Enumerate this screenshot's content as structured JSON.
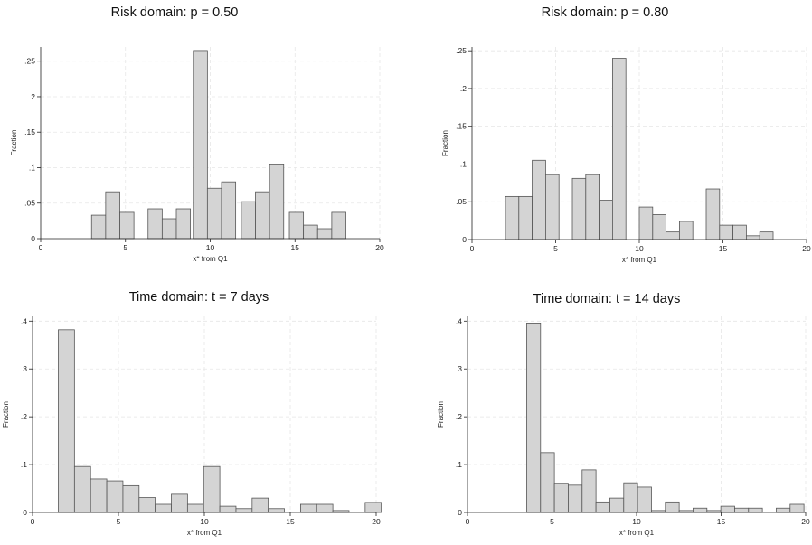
{
  "chart_data": [
    {
      "type": "bar",
      "title": "Risk domain: p = 0.50",
      "xlabel": "x* from Q1",
      "ylabel": "Fraction",
      "xlim": [
        0,
        20
      ],
      "ylim": [
        0,
        0.27
      ],
      "xticks": [
        0,
        5,
        10,
        15,
        20
      ],
      "xtick_labels": [
        "0",
        "5",
        "10",
        "15",
        "20"
      ],
      "yticks": [
        0,
        0.05,
        0.1,
        0.15,
        0.2,
        0.25
      ],
      "ytick_labels": [
        "0",
        ".05",
        ".1",
        ".15",
        ".2",
        ".25"
      ],
      "grid": true,
      "bin_width": 0.833,
      "bin_start": 3.0,
      "bars": [
        {
          "x": 3.0,
          "value": 0.033
        },
        {
          "x": 3.833,
          "value": 0.066
        },
        {
          "x": 4.667,
          "value": 0.037
        },
        {
          "x": 6.333,
          "value": 0.042
        },
        {
          "x": 7.167,
          "value": 0.028
        },
        {
          "x": 8.0,
          "value": 0.042
        },
        {
          "x": 9.0,
          "value": 0.265
        },
        {
          "x": 9.833,
          "value": 0.071
        },
        {
          "x": 10.667,
          "value": 0.08
        },
        {
          "x": 11.833,
          "value": 0.052
        },
        {
          "x": 12.667,
          "value": 0.066
        },
        {
          "x": 13.5,
          "value": 0.104
        },
        {
          "x": 14.667,
          "value": 0.037
        },
        {
          "x": 15.5,
          "value": 0.019
        },
        {
          "x": 16.333,
          "value": 0.014
        },
        {
          "x": 17.167,
          "value": 0.037
        }
      ]
    },
    {
      "type": "bar",
      "title": "Risk domain: p = 0.80",
      "xlabel": "x* from Q1",
      "ylabel": "Fraction",
      "xlim": [
        0,
        20
      ],
      "ylim": [
        0,
        0.255
      ],
      "xticks": [
        0,
        5,
        10,
        15,
        20
      ],
      "xtick_labels": [
        "0",
        "5",
        "10",
        "15",
        "20"
      ],
      "yticks": [
        0,
        0.05,
        0.1,
        0.15,
        0.2,
        0.25
      ],
      "ytick_labels": [
        "0",
        ".05",
        ".1",
        ".15",
        ".2",
        ".25"
      ],
      "grid": true,
      "bin_width": 0.8,
      "bin_start": 2.0,
      "bars": [
        {
          "x": 2.0,
          "value": 0.057
        },
        {
          "x": 2.8,
          "value": 0.057
        },
        {
          "x": 3.6,
          "value": 0.105
        },
        {
          "x": 4.4,
          "value": 0.086
        },
        {
          "x": 6.0,
          "value": 0.081
        },
        {
          "x": 6.8,
          "value": 0.086
        },
        {
          "x": 7.6,
          "value": 0.052
        },
        {
          "x": 8.4,
          "value": 0.24
        },
        {
          "x": 10.0,
          "value": 0.043
        },
        {
          "x": 10.8,
          "value": 0.033
        },
        {
          "x": 11.6,
          "value": 0.01
        },
        {
          "x": 12.4,
          "value": 0.024
        },
        {
          "x": 14.0,
          "value": 0.067
        },
        {
          "x": 14.8,
          "value": 0.019
        },
        {
          "x": 15.6,
          "value": 0.019
        },
        {
          "x": 16.4,
          "value": 0.005
        },
        {
          "x": 17.2,
          "value": 0.01
        }
      ]
    },
    {
      "type": "bar",
      "title": "Time domain: t = 7 days",
      "xlabel": "x* from Q1",
      "ylabel": "Fraction",
      "xlim": [
        0,
        20
      ],
      "ylim": [
        0,
        0.41
      ],
      "xticks": [
        0,
        5,
        10,
        15,
        20
      ],
      "xtick_labels": [
        "0",
        "5",
        "10",
        "15",
        "20"
      ],
      "yticks": [
        0,
        0.1,
        0.2,
        0.3,
        0.4
      ],
      "ytick_labels": [
        "0",
        ".1",
        ".2",
        ".3",
        ".4"
      ],
      "grid": true,
      "bin_width": 0.94,
      "bin_start": 1.5,
      "bars": [
        {
          "x": 1.5,
          "value": 0.382
        },
        {
          "x": 2.44,
          "value": 0.096
        },
        {
          "x": 3.38,
          "value": 0.07
        },
        {
          "x": 4.32,
          "value": 0.066
        },
        {
          "x": 5.26,
          "value": 0.056
        },
        {
          "x": 6.2,
          "value": 0.031
        },
        {
          "x": 7.14,
          "value": 0.017
        },
        {
          "x": 8.08,
          "value": 0.038
        },
        {
          "x": 9.02,
          "value": 0.017
        },
        {
          "x": 9.96,
          "value": 0.096
        },
        {
          "x": 10.9,
          "value": 0.013
        },
        {
          "x": 11.84,
          "value": 0.008
        },
        {
          "x": 12.78,
          "value": 0.03
        },
        {
          "x": 13.72,
          "value": 0.008
        },
        {
          "x": 15.6,
          "value": 0.017
        },
        {
          "x": 16.54,
          "value": 0.017
        },
        {
          "x": 17.48,
          "value": 0.004
        },
        {
          "x": 19.36,
          "value": 0.021
        }
      ]
    },
    {
      "type": "bar",
      "title": "Time domain: t = 14 days",
      "xlabel": "x* from Q1",
      "ylabel": "Fraction",
      "xlim": [
        0,
        20
      ],
      "ylim": [
        0,
        0.41
      ],
      "xticks": [
        0,
        5,
        10,
        15,
        20
      ],
      "xtick_labels": [
        "0",
        "5",
        "10",
        "15",
        "20"
      ],
      "yticks": [
        0,
        0.1,
        0.2,
        0.3,
        0.4
      ],
      "ytick_labels": [
        "0",
        ".1",
        ".2",
        ".3",
        ".4"
      ],
      "grid": true,
      "bin_width": 0.82,
      "bin_start": 3.5,
      "bars": [
        {
          "x": 3.5,
          "value": 0.396
        },
        {
          "x": 4.32,
          "value": 0.125
        },
        {
          "x": 5.14,
          "value": 0.061
        },
        {
          "x": 5.96,
          "value": 0.057
        },
        {
          "x": 6.78,
          "value": 0.089
        },
        {
          "x": 7.6,
          "value": 0.022
        },
        {
          "x": 8.42,
          "value": 0.03
        },
        {
          "x": 9.24,
          "value": 0.062
        },
        {
          "x": 10.06,
          "value": 0.053
        },
        {
          "x": 10.88,
          "value": 0.004
        },
        {
          "x": 11.7,
          "value": 0.022
        },
        {
          "x": 12.52,
          "value": 0.004
        },
        {
          "x": 13.34,
          "value": 0.009
        },
        {
          "x": 14.16,
          "value": 0.004
        },
        {
          "x": 14.98,
          "value": 0.013
        },
        {
          "x": 15.8,
          "value": 0.009
        },
        {
          "x": 16.62,
          "value": 0.009
        },
        {
          "x": 18.26,
          "value": 0.009
        },
        {
          "x": 19.08,
          "value": 0.017
        }
      ]
    }
  ]
}
